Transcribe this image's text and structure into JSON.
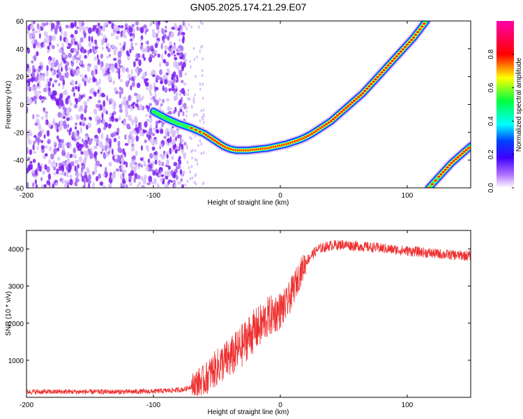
{
  "title": "GN05.2025.174.21.29.E07",
  "chart_data": [
    {
      "type": "heatmap",
      "xlabel": "Height of straight line (km)",
      "ylabel": "Frequency (Hz)",
      "xlim": [
        -200,
        150
      ],
      "ylim": [
        -60,
        60
      ],
      "xticks": [
        -200,
        -100,
        0,
        100
      ],
      "yticks": [
        -60,
        -40,
        -20,
        0,
        20,
        40,
        60
      ],
      "grid": false,
      "colorbar": {
        "label": "Normalized spectral amplitude",
        "range": [
          0.0,
          1.0
        ],
        "ticks": [
          0.0,
          0.2,
          0.4,
          0.6,
          0.8
        ],
        "colormap": [
          "#ffffff",
          "#8000ff",
          "#0000ff",
          "#00ffff",
          "#00ff00",
          "#ffff00",
          "#ff0000",
          "#ff00ff"
        ]
      },
      "noise_region": {
        "x_range": [
          -200,
          -75
        ],
        "sparse_x_range": [
          -75,
          -60
        ],
        "typical_amplitude": 0.25,
        "color": "#8000ff"
      },
      "trace": {
        "x": [
          -100,
          -90,
          -80,
          -70,
          -60,
          -55,
          -50,
          -45,
          -40,
          -35,
          -30,
          -25,
          -20,
          -15,
          -10,
          -5,
          0,
          5,
          10,
          15,
          20,
          25,
          30,
          35,
          40,
          45,
          50,
          55,
          60,
          65,
          70,
          75,
          80,
          85,
          90,
          95,
          100,
          105,
          110,
          115
        ],
        "y": [
          -5,
          -10,
          -14,
          -17,
          -21,
          -24,
          -27,
          -30,
          -32,
          -33,
          -33,
          -33,
          -32.5,
          -32,
          -31.5,
          -30.5,
          -29.5,
          -28.5,
          -27,
          -25.5,
          -23.5,
          -21,
          -18,
          -15,
          -12,
          -8,
          -4,
          0,
          4,
          8,
          13,
          18,
          23,
          28,
          33,
          38,
          43,
          48,
          54,
          60
        ]
      },
      "alias_trace": {
        "x": [
          117,
          125,
          130,
          135,
          140,
          145,
          150
        ],
        "y": [
          -60,
          -52,
          -47,
          -42,
          -38,
          -34,
          -30
        ]
      }
    },
    {
      "type": "line",
      "xlabel": "Height of straight line (km)",
      "ylabel": "SNR (10 * v/v)",
      "xlim": [
        -200,
        150
      ],
      "ylim": [
        0,
        4500
      ],
      "xticks": [
        -200,
        -100,
        0,
        100
      ],
      "yticks": [
        1000,
        2000,
        3000,
        4000
      ],
      "grid": false,
      "color": "#ee3030",
      "series": [
        {
          "x": [
            -200,
            -180,
            -160,
            -140,
            -120,
            -100,
            -90,
            -80,
            -75,
            -70,
            -65,
            -60,
            -55,
            -50,
            -45,
            -40,
            -35,
            -30,
            -25,
            -20,
            -15,
            -10,
            -5,
            0,
            5,
            10,
            15,
            20,
            25,
            30,
            40,
            50,
            60,
            70,
            80,
            90,
            100,
            110,
            120,
            130,
            140,
            150
          ],
          "y": [
            150,
            150,
            150,
            150,
            150,
            160,
            180,
            200,
            220,
            300,
            400,
            450,
            650,
            800,
            950,
            1050,
            1200,
            1400,
            1650,
            1800,
            1950,
            2150,
            2250,
            2350,
            2500,
            2900,
            3300,
            3650,
            3850,
            4000,
            4100,
            4120,
            4080,
            4050,
            4020,
            3980,
            3950,
            3920,
            3880,
            3850,
            3830,
            3820
          ]
        }
      ]
    }
  ]
}
